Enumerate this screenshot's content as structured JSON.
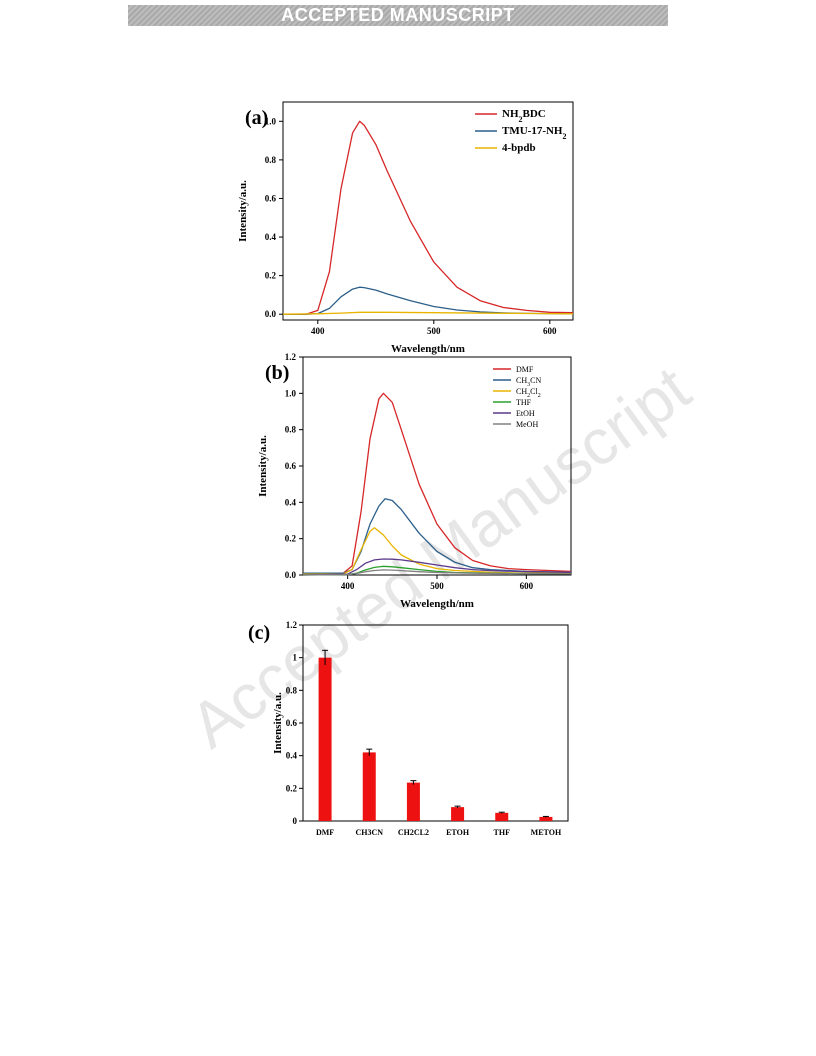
{
  "banner": "ACCEPTED MANUSCRIPT",
  "watermark": "Accepted Manuscript",
  "chart_data": [
    {
      "panel": "(a)",
      "type": "line",
      "xlabel": "Wavelength/nm",
      "ylabel": "Intensity/a.u.",
      "xlim": [
        370,
        620
      ],
      "ylim": [
        -0.03,
        1.1
      ],
      "xticks": [
        400,
        500,
        600
      ],
      "yticks": [
        "0.0",
        "0.2",
        "0.4",
        "0.6",
        "0.8",
        "1.0"
      ],
      "legend_position": "top-right",
      "series": [
        {
          "name": "NH2BDC",
          "label_parts": [
            "NH",
            "2",
            "BDC"
          ],
          "color": "#d62728",
          "x": [
            370,
            390,
            400,
            410,
            420,
            430,
            436,
            440,
            450,
            460,
            480,
            500,
            520,
            540,
            560,
            580,
            600,
            620
          ],
          "y": [
            0,
            0,
            0.02,
            0.22,
            0.65,
            0.94,
            1.0,
            0.98,
            0.88,
            0.74,
            0.48,
            0.27,
            0.14,
            0.07,
            0.035,
            0.02,
            0.01,
            0.008
          ]
        },
        {
          "name": "TMU-17-NH2",
          "label_parts": [
            "TMU-17-NH",
            "2",
            ""
          ],
          "color": "#2c5f8a",
          "x": [
            370,
            390,
            400,
            410,
            420,
            430,
            436,
            440,
            450,
            460,
            480,
            500,
            520,
            540,
            560,
            580,
            600,
            620
          ],
          "y": [
            0,
            0,
            0.003,
            0.03,
            0.09,
            0.13,
            0.14,
            0.138,
            0.125,
            0.105,
            0.07,
            0.04,
            0.022,
            0.012,
            0.007,
            0.004,
            0.003,
            0.002
          ]
        },
        {
          "name": "4-bpdb",
          "label_parts": [
            "4-bpdb",
            "",
            ""
          ],
          "color": "#e8b400",
          "x": [
            370,
            400,
            420,
            436,
            460,
            500,
            550,
            600,
            620
          ],
          "y": [
            0,
            0.002,
            0.006,
            0.01,
            0.01,
            0.008,
            0.005,
            0.003,
            0.002
          ]
        }
      ]
    },
    {
      "panel": "(b)",
      "type": "line",
      "xlabel": "Wavelength/nm",
      "ylabel": "Intensity/a.u.",
      "xlim": [
        350,
        650
      ],
      "ylim": [
        0,
        1.2
      ],
      "xticks": [
        400,
        500,
        600
      ],
      "yticks": [
        "0.0",
        "0.2",
        "0.4",
        "0.6",
        "0.8",
        "1.0",
        "1.2"
      ],
      "legend_position": "top-right",
      "series": [
        {
          "name": "DMF",
          "label_parts": [
            "DMF",
            "",
            "",
            "",
            ""
          ],
          "color": "#d62728",
          "x": [
            350,
            395,
            405,
            415,
            425,
            435,
            440,
            450,
            460,
            480,
            500,
            520,
            540,
            560,
            580,
            600,
            650
          ],
          "y": [
            0.01,
            0.01,
            0.05,
            0.35,
            0.75,
            0.97,
            1.0,
            0.95,
            0.8,
            0.5,
            0.28,
            0.15,
            0.08,
            0.05,
            0.035,
            0.03,
            0.02
          ]
        },
        {
          "name": "CH3CN",
          "label_parts": [
            "CH",
            "3",
            "CN",
            "",
            ""
          ],
          "color": "#2c5f8a",
          "x": [
            350,
            395,
            405,
            415,
            425,
            435,
            442,
            450,
            460,
            480,
            500,
            520,
            540,
            560,
            580,
            600,
            650
          ],
          "y": [
            0.01,
            0.01,
            0.03,
            0.13,
            0.28,
            0.38,
            0.42,
            0.41,
            0.36,
            0.23,
            0.13,
            0.07,
            0.04,
            0.03,
            0.025,
            0.02,
            0.015
          ]
        },
        {
          "name": "CH2Cl2",
          "label_parts": [
            "CH",
            "2",
            "Cl",
            "2",
            ""
          ],
          "color": "#e8b400",
          "x": [
            350,
            395,
            405,
            415,
            425,
            430,
            440,
            450,
            460,
            480,
            500,
            520,
            540,
            560,
            600,
            650
          ],
          "y": [
            0.005,
            0.005,
            0.03,
            0.14,
            0.24,
            0.26,
            0.22,
            0.16,
            0.11,
            0.06,
            0.035,
            0.025,
            0.02,
            0.015,
            0.01,
            0.01
          ]
        },
        {
          "name": "THF",
          "label_parts": [
            "THF",
            "",
            "",
            "",
            ""
          ],
          "color": "#2ca02c",
          "x": [
            350,
            400,
            410,
            420,
            430,
            440,
            450,
            460,
            480,
            500,
            520,
            560,
            600,
            650
          ],
          "y": [
            0,
            0.002,
            0.01,
            0.028,
            0.042,
            0.048,
            0.045,
            0.04,
            0.03,
            0.02,
            0.014,
            0.01,
            0.008,
            0.006
          ]
        },
        {
          "name": "EtOH",
          "label_parts": [
            "EtOH",
            "",
            "",
            "",
            ""
          ],
          "color": "#5b3a8c",
          "x": [
            350,
            400,
            410,
            420,
            430,
            440,
            450,
            460,
            480,
            500,
            520,
            540,
            560,
            600,
            650
          ],
          "y": [
            0,
            0.005,
            0.03,
            0.065,
            0.083,
            0.088,
            0.087,
            0.083,
            0.07,
            0.055,
            0.04,
            0.03,
            0.024,
            0.018,
            0.015
          ]
        },
        {
          "name": "MeOH",
          "label_parts": [
            "MeOH",
            "",
            "",
            "",
            ""
          ],
          "color": "#808080",
          "x": [
            350,
            400,
            410,
            420,
            430,
            440,
            450,
            460,
            480,
            500,
            540,
            600,
            650
          ],
          "y": [
            0,
            0.002,
            0.008,
            0.018,
            0.025,
            0.028,
            0.027,
            0.024,
            0.018,
            0.014,
            0.01,
            0.007,
            0.006
          ]
        }
      ]
    },
    {
      "panel": "(c)",
      "type": "bar",
      "ylabel": "Intensity/a.u.",
      "ylim": [
        0,
        1.2
      ],
      "yticks": [
        "0",
        "0.2",
        "0.4",
        "0.6",
        "0.8",
        "1",
        "1.2"
      ],
      "bar_color": "#ee1111",
      "categories": [
        "DMF",
        "CH3CN",
        "CH2CL2",
        "ETOH",
        "THF",
        "METOH"
      ],
      "values": [
        1.0,
        0.42,
        0.235,
        0.085,
        0.05,
        0.025
      ],
      "errors": [
        0.045,
        0.02,
        0.012,
        0.006,
        0.004,
        0.003
      ]
    }
  ]
}
